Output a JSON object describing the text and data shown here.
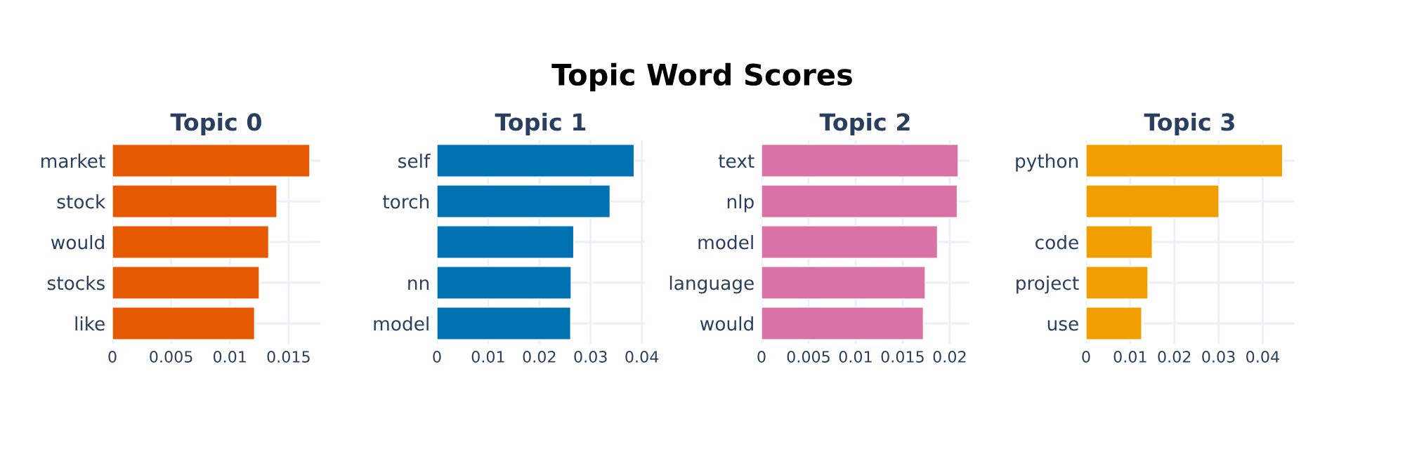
{
  "chart_data": [
    {
      "type": "bar",
      "orientation": "horizontal",
      "title": "Topic 0",
      "annotations": [
        "Topic Word Scores"
      ],
      "categories": [
        "market",
        "stock",
        "would",
        "stocks",
        "like"
      ],
      "values": [
        0.0168,
        0.014,
        0.0133,
        0.0125,
        0.0121
      ],
      "color": "#e55a00",
      "xlim": [
        0,
        0.0177
      ],
      "xticks": [
        0,
        0.005,
        0.01,
        0.015
      ],
      "grid": true
    },
    {
      "type": "bar",
      "orientation": "horizontal",
      "title": "Topic 1",
      "categories": [
        "self",
        "torch",
        null,
        "nn",
        "model"
      ],
      "values": [
        0.0385,
        0.0338,
        0.0267,
        0.0262,
        0.0261
      ],
      "color": "#0072b2",
      "xlim": [
        0,
        0.0406
      ],
      "xticks": [
        0,
        0.01,
        0.02,
        0.03,
        0.04
      ],
      "grid": true
    },
    {
      "type": "bar",
      "orientation": "horizontal",
      "title": "Topic 2",
      "categories": [
        "text",
        "nlp",
        "model",
        "language",
        "would"
      ],
      "values": [
        0.0209,
        0.0208,
        0.0187,
        0.0174,
        0.0172
      ],
      "color": "#d973a7",
      "xlim": [
        0,
        0.0221
      ],
      "xticks": [
        0,
        0.005,
        0.01,
        0.015,
        0.02
      ],
      "grid": true
    },
    {
      "type": "bar",
      "orientation": "horizontal",
      "title": "Topic 3",
      "categories": [
        "python",
        null,
        "code",
        "project",
        "use"
      ],
      "values": [
        0.0445,
        0.0301,
        0.015,
        0.014,
        0.0126
      ],
      "color": "#f09e00",
      "xlim": [
        0,
        0.0471
      ],
      "xticks": [
        0,
        0.01,
        0.02,
        0.03,
        0.04
      ],
      "grid": true
    }
  ]
}
